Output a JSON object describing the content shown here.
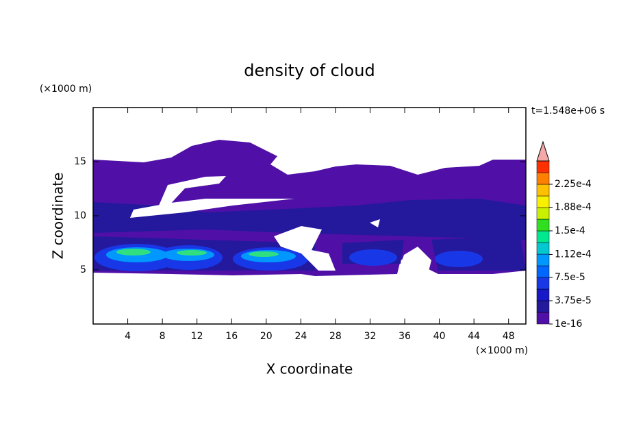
{
  "chart_data": {
    "type": "contour",
    "title": "density of cloud",
    "x_label": "X coordinate",
    "y_label": "Z coordinate",
    "x_unit": "(×1000 m)",
    "y_unit": "(×1000 m)",
    "time_label": "t=1.548e+06 s",
    "xlim": [
      0,
      50
    ],
    "xticks": [
      4,
      8,
      12,
      16,
      20,
      24,
      28,
      32,
      36,
      40,
      44,
      48
    ],
    "ylim": [
      0,
      20
    ],
    "yticks": [
      5,
      10,
      15
    ],
    "colorbar": {
      "lim": [
        1e-16,
        0.0002625
      ],
      "colors": [
        "#5010a8",
        "#24189c",
        "#1818c8",
        "#1838e8",
        "#0068ff",
        "#0098ff",
        "#00c8d0",
        "#00e890",
        "#30e020",
        "#c8f000",
        "#f8f000",
        "#ffc000",
        "#ff8000",
        "#ff3000"
      ],
      "extend_color": "#f4a8a8",
      "ticks": [
        1e-16,
        {
          "value": 3.75e-05,
          "label": "3.75e-5"
        },
        {
          "value": 7.5e-05,
          "label": "7.5e-5"
        },
        {
          "value": 0.000112,
          "label": "1.12e-4"
        },
        {
          "value": 0.00015,
          "label": "1.5e-4"
        },
        {
          "value": 0.000188,
          "label": "1.88e-4"
        },
        {
          "value": 0.000225,
          "label": "2.25e-4"
        }
      ]
    }
  }
}
